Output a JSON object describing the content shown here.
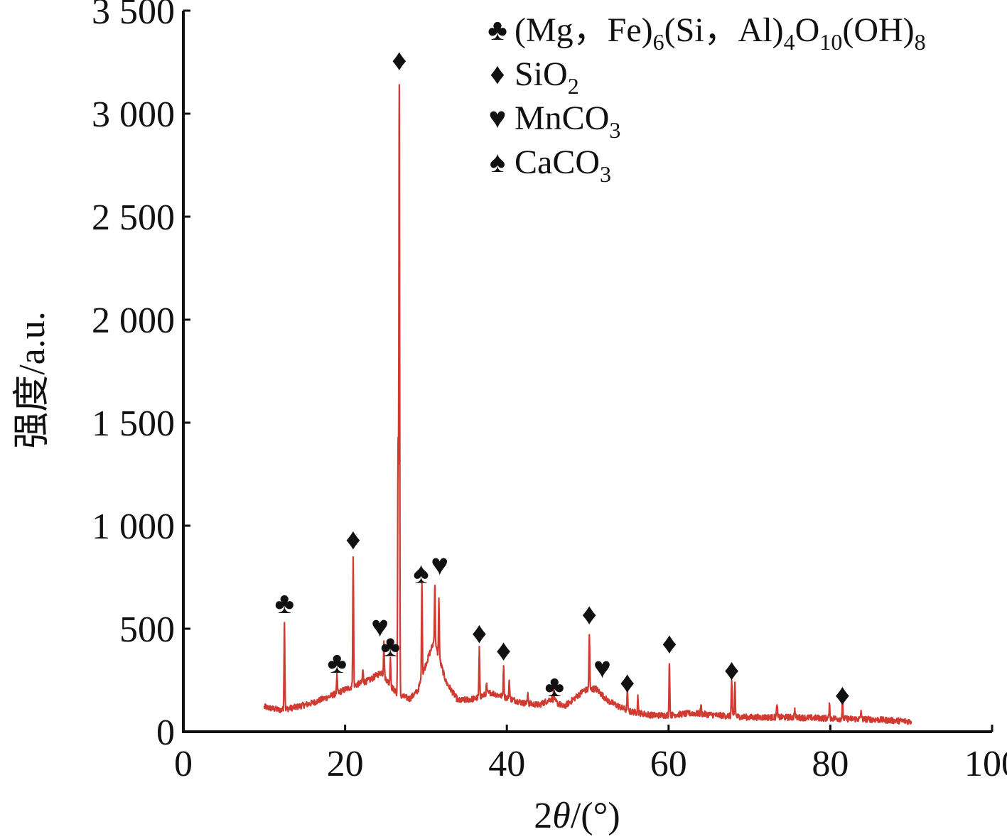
{
  "chart_data": {
    "type": "line",
    "title": "",
    "xlabel_prefix": "2",
    "xlabel_theta": "θ",
    "xlabel_suffix": "/(°)",
    "ylabel": "强度/a.u.",
    "xlim": [
      0,
      100
    ],
    "ylim": [
      0,
      3500
    ],
    "x_ticks": [
      {
        "value": 0,
        "label": "0"
      },
      {
        "value": 20,
        "label": "20"
      },
      {
        "value": 40,
        "label": "40"
      },
      {
        "value": 60,
        "label": "60"
      },
      {
        "value": 80,
        "label": "80"
      },
      {
        "value": 100,
        "label": "100"
      }
    ],
    "y_ticks": [
      {
        "value": 0,
        "label": "0"
      },
      {
        "value": 500,
        "label": "500"
      },
      {
        "value": 1000,
        "label": "1 000"
      },
      {
        "value": 1500,
        "label": "1 500"
      },
      {
        "value": 2000,
        "label": "2 000"
      },
      {
        "value": 2500,
        "label": "2 500"
      },
      {
        "value": 3000,
        "label": "3 000"
      },
      {
        "value": 3500,
        "label": "3 500"
      }
    ],
    "grid": false,
    "legend_position": "top-right",
    "line_color": "#d03a30",
    "x_range": [
      10,
      90
    ],
    "baseline_points": [
      [
        10,
        120
      ],
      [
        12,
        105
      ],
      [
        14,
        120
      ],
      [
        16,
        140
      ],
      [
        18,
        170
      ],
      [
        20,
        205
      ],
      [
        21.5,
        230
      ],
      [
        23,
        250
      ],
      [
        24.5,
        290
      ],
      [
        25.5,
        230
      ],
      [
        26.5,
        180
      ],
      [
        28,
        160
      ],
      [
        29,
        200
      ],
      [
        30,
        330
      ],
      [
        31,
        440
      ],
      [
        32.5,
        240
      ],
      [
        34,
        150
      ],
      [
        36,
        160
      ],
      [
        38,
        190
      ],
      [
        40,
        165
      ],
      [
        42,
        140
      ],
      [
        44,
        130
      ],
      [
        45.5,
        160
      ],
      [
        47,
        120
      ],
      [
        48,
        150
      ],
      [
        49.5,
        200
      ],
      [
        51,
        210
      ],
      [
        52.5,
        150
      ],
      [
        55,
        100
      ],
      [
        58,
        80
      ],
      [
        60,
        80
      ],
      [
        63,
        90
      ],
      [
        66,
        80
      ],
      [
        70,
        70
      ],
      [
        75,
        70
      ],
      [
        80,
        65
      ],
      [
        85,
        60
      ],
      [
        90,
        50
      ]
    ],
    "peaks": [
      {
        "x": 12.5,
        "y": 530
      },
      {
        "x": 19,
        "y": 270
      },
      {
        "x": 21,
        "y": 840
      },
      {
        "x": 22.2,
        "y": 300
      },
      {
        "x": 24.8,
        "y": 430
      },
      {
        "x": 25.6,
        "y": 360
      },
      {
        "x": 26.7,
        "y": 3140
      },
      {
        "x": 26.55,
        "y": 1400
      },
      {
        "x": 29.5,
        "y": 720
      },
      {
        "x": 31.1,
        "y": 710
      },
      {
        "x": 31.6,
        "y": 640
      },
      {
        "x": 36.6,
        "y": 400
      },
      {
        "x": 37.5,
        "y": 230
      },
      {
        "x": 39.6,
        "y": 320
      },
      {
        "x": 40.3,
        "y": 250
      },
      {
        "x": 42.6,
        "y": 190
      },
      {
        "x": 45.8,
        "y": 200
      },
      {
        "x": 50.2,
        "y": 470
      },
      {
        "x": 54.9,
        "y": 200
      },
      {
        "x": 56.2,
        "y": 170
      },
      {
        "x": 60.1,
        "y": 330
      },
      {
        "x": 64,
        "y": 130
      },
      {
        "x": 67.8,
        "y": 250
      },
      {
        "x": 68.2,
        "y": 240
      },
      {
        "x": 73.4,
        "y": 130
      },
      {
        "x": 75.6,
        "y": 110
      },
      {
        "x": 79.9,
        "y": 130
      },
      {
        "x": 81.5,
        "y": 140
      },
      {
        "x": 83.8,
        "y": 100
      }
    ],
    "peak_labels": [
      {
        "x": 12.5,
        "y": 625,
        "symbol": "♣"
      },
      {
        "x": 19,
        "y": 335,
        "symbol": "♣"
      },
      {
        "x": 21,
        "y": 935,
        "symbol": "♦"
      },
      {
        "x": 24.3,
        "y": 510,
        "symbol": "♥"
      },
      {
        "x": 25.6,
        "y": 415,
        "symbol": "♣"
      },
      {
        "x": 26.7,
        "y": 3260,
        "symbol": "♦"
      },
      {
        "x": 29.4,
        "y": 770,
        "symbol": "♠"
      },
      {
        "x": 31.7,
        "y": 810,
        "symbol": "♥"
      },
      {
        "x": 36.6,
        "y": 480,
        "symbol": "♦"
      },
      {
        "x": 39.6,
        "y": 395,
        "symbol": "♦"
      },
      {
        "x": 45.9,
        "y": 220,
        "symbol": "♣"
      },
      {
        "x": 50.2,
        "y": 570,
        "symbol": "♦"
      },
      {
        "x": 51.8,
        "y": 310,
        "symbol": "♥"
      },
      {
        "x": 54.9,
        "y": 240,
        "symbol": "♦"
      },
      {
        "x": 60.1,
        "y": 430,
        "symbol": "♦"
      },
      {
        "x": 67.8,
        "y": 300,
        "symbol": "♦"
      },
      {
        "x": 81.5,
        "y": 180,
        "symbol": "♦"
      }
    ],
    "legend": [
      {
        "symbol": "♣",
        "text_parts": [
          {
            "t": "(Mg，Fe)",
            "sub": false
          },
          {
            "t": "6",
            "sub": true
          },
          {
            "t": "(Si，Al)",
            "sub": false
          },
          {
            "t": "4",
            "sub": true
          },
          {
            "t": "O",
            "sub": false
          },
          {
            "t": "10",
            "sub": true
          },
          {
            "t": "(OH)",
            "sub": false
          },
          {
            "t": "8",
            "sub": true
          }
        ]
      },
      {
        "symbol": "♦",
        "text_parts": [
          {
            "t": "SiO",
            "sub": false
          },
          {
            "t": "2",
            "sub": true
          }
        ]
      },
      {
        "symbol": "♥",
        "text_parts": [
          {
            "t": "MnCO",
            "sub": false
          },
          {
            "t": "3",
            "sub": true
          }
        ]
      },
      {
        "symbol": "♠",
        "text_parts": [
          {
            "t": "CaCO",
            "sub": false
          },
          {
            "t": "3",
            "sub": true
          }
        ]
      }
    ]
  }
}
